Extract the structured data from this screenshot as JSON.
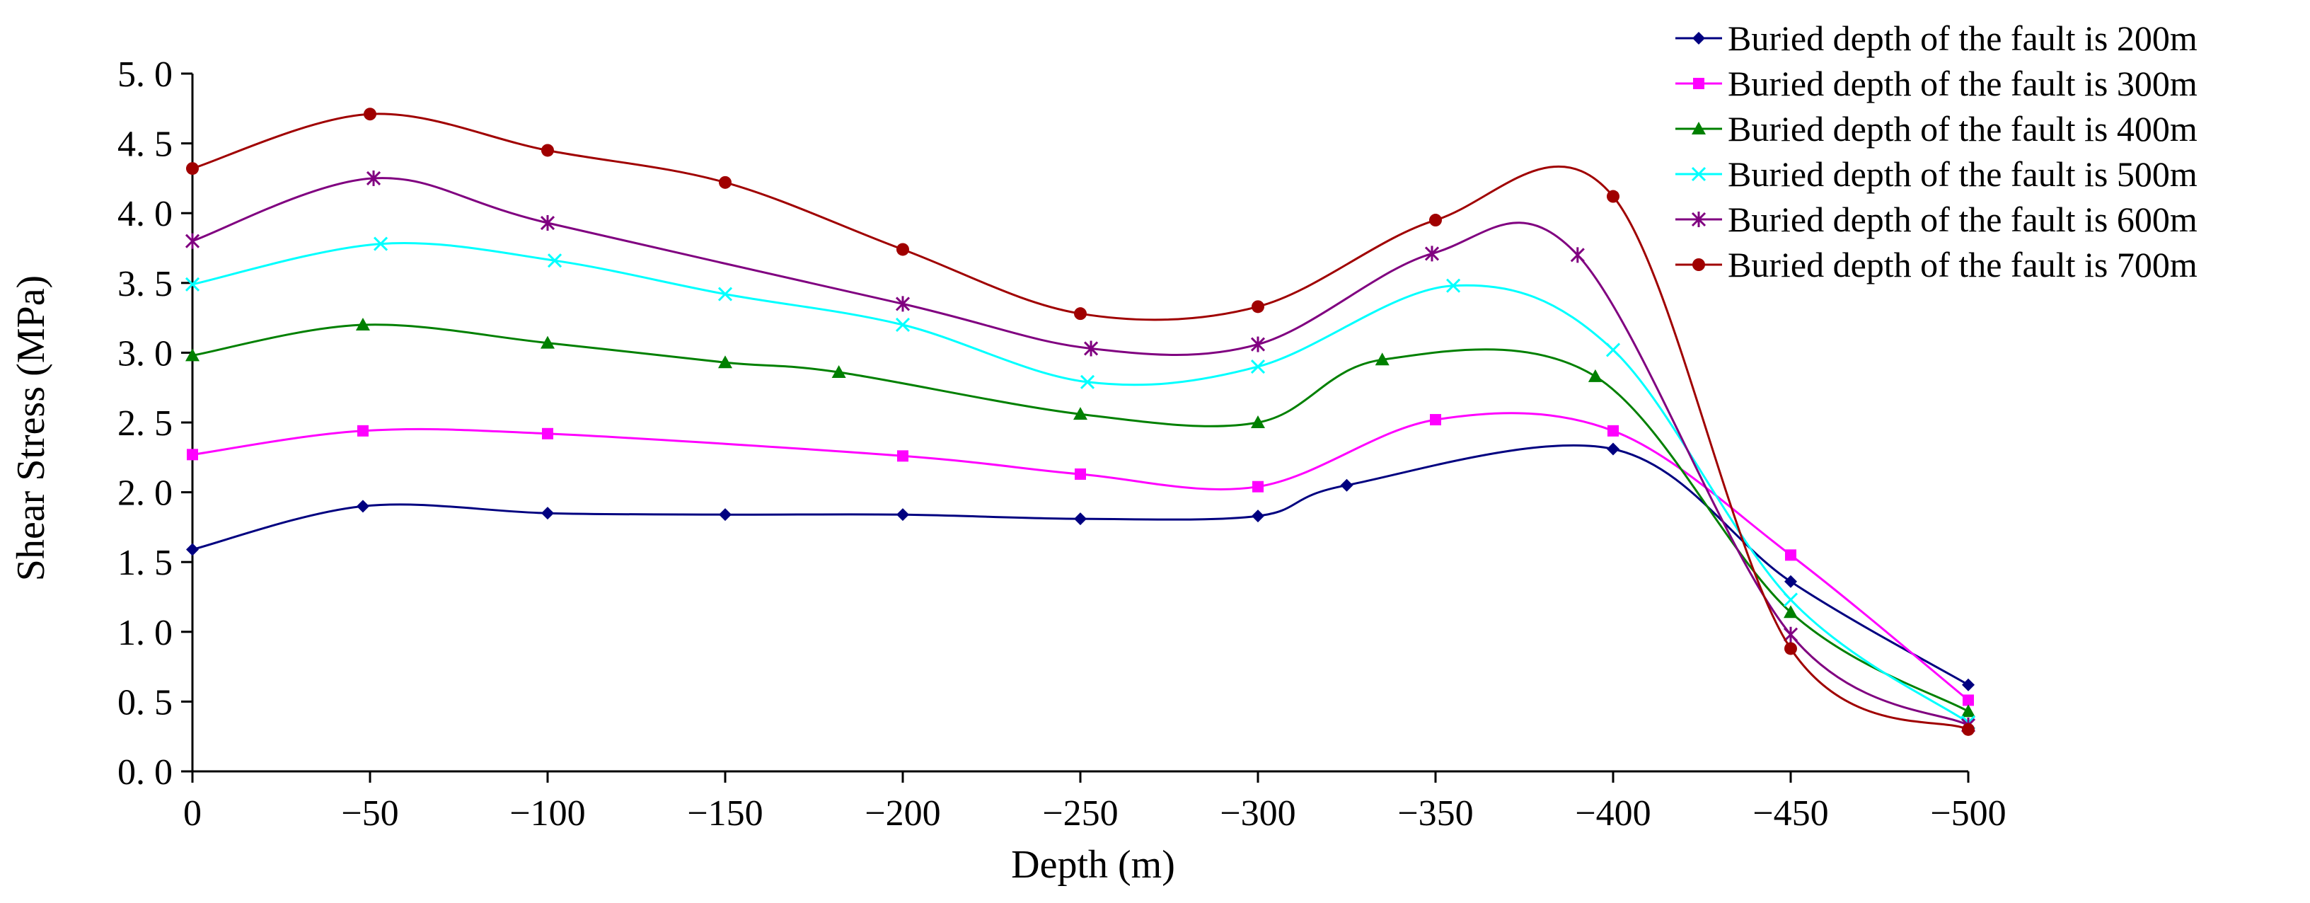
{
  "chart_data": {
    "type": "line",
    "title": "",
    "xlabel": "Depth (m)",
    "ylabel": "Shear Stress (MPa)",
    "xlim": [
      0,
      -500
    ],
    "ylim": [
      0,
      5
    ],
    "x_ticks": [
      0,
      -50,
      -100,
      -150,
      -200,
      -250,
      -300,
      -350,
      -400,
      -450,
      -500
    ],
    "x_tick_labels": [
      "0",
      "−50",
      "−100",
      "−150",
      "−200",
      "−250",
      "−300",
      "−350",
      "−400",
      "−450",
      "−500"
    ],
    "y_ticks": [
      0,
      0.5,
      1,
      1.5,
      2,
      2.5,
      3,
      3.5,
      4,
      4.5,
      5
    ],
    "y_tick_labels": [
      "0. 0",
      "0. 5",
      "1. 0",
      "1. 5",
      "2. 0",
      "2. 5",
      "3. 0",
      "3. 5",
      "4. 0",
      "4. 5",
      "5. 0"
    ],
    "grid": false,
    "legend_position": "top-right",
    "series": [
      {
        "name": "Buried depth of the fault is 200m",
        "color": "#000080",
        "marker": "diamond",
        "points": [
          [
            0,
            1.59
          ],
          [
            -48,
            1.9
          ],
          [
            -100,
            1.85
          ],
          [
            -150,
            1.84
          ],
          [
            -200,
            1.84
          ],
          [
            -250,
            1.81
          ],
          [
            -300,
            1.83
          ],
          [
            -325,
            2.05
          ],
          [
            -400,
            2.31
          ],
          [
            -450,
            1.36
          ],
          [
            -500,
            0.62
          ]
        ]
      },
      {
        "name": "Buried depth of the fault is 300m",
        "color": "#ff00ff",
        "marker": "square",
        "points": [
          [
            0,
            2.27
          ],
          [
            -48,
            2.44
          ],
          [
            -100,
            2.42
          ],
          [
            -200,
            2.26
          ],
          [
            -250,
            2.13
          ],
          [
            -300,
            2.04
          ],
          [
            -350,
            2.52
          ],
          [
            -400,
            2.44
          ],
          [
            -450,
            1.55
          ],
          [
            -500,
            0.51
          ]
        ]
      },
      {
        "name": "Buried depth of the fault is 400m",
        "color": "#008000",
        "marker": "triangle",
        "points": [
          [
            0,
            2.98
          ],
          [
            -48,
            3.2
          ],
          [
            -100,
            3.07
          ],
          [
            -150,
            2.93
          ],
          [
            -182,
            2.86
          ],
          [
            -250,
            2.56
          ],
          [
            -300,
            2.5
          ],
          [
            -335,
            2.95
          ],
          [
            -395,
            2.83
          ],
          [
            -450,
            1.14
          ],
          [
            -500,
            0.43
          ]
        ]
      },
      {
        "name": "Buried depth of the fault is 500m",
        "color": "#00ffff",
        "marker": "x",
        "points": [
          [
            0,
            3.49
          ],
          [
            -53,
            3.78
          ],
          [
            -102,
            3.66
          ],
          [
            -150,
            3.42
          ],
          [
            -200,
            3.2
          ],
          [
            -252,
            2.79
          ],
          [
            -300,
            2.9
          ],
          [
            -355,
            3.48
          ],
          [
            -400,
            3.02
          ],
          [
            -450,
            1.23
          ],
          [
            -500,
            0.35
          ]
        ]
      },
      {
        "name": "Buried depth of the fault is 600m",
        "color": "#800080",
        "marker": "star",
        "points": [
          [
            0,
            3.8
          ],
          [
            -51,
            4.25
          ],
          [
            -100,
            3.93
          ],
          [
            -200,
            3.35
          ],
          [
            -253,
            3.03
          ],
          [
            -300,
            3.06
          ],
          [
            -349,
            3.71
          ],
          [
            -390,
            3.7
          ],
          [
            -450,
            0.98
          ],
          [
            -500,
            0.33
          ]
        ]
      },
      {
        "name": "Buried depth of the fault is 700m",
        "color": "#a00000",
        "marker": "circle",
        "points": [
          [
            0,
            4.32
          ],
          [
            -50,
            4.71
          ],
          [
            -100,
            4.45
          ],
          [
            -150,
            4.22
          ],
          [
            -200,
            3.74
          ],
          [
            -250,
            3.28
          ],
          [
            -300,
            3.33
          ],
          [
            -350,
            3.95
          ],
          [
            -400,
            4.12
          ],
          [
            -450,
            0.88
          ],
          [
            -500,
            0.3
          ]
        ]
      }
    ]
  }
}
